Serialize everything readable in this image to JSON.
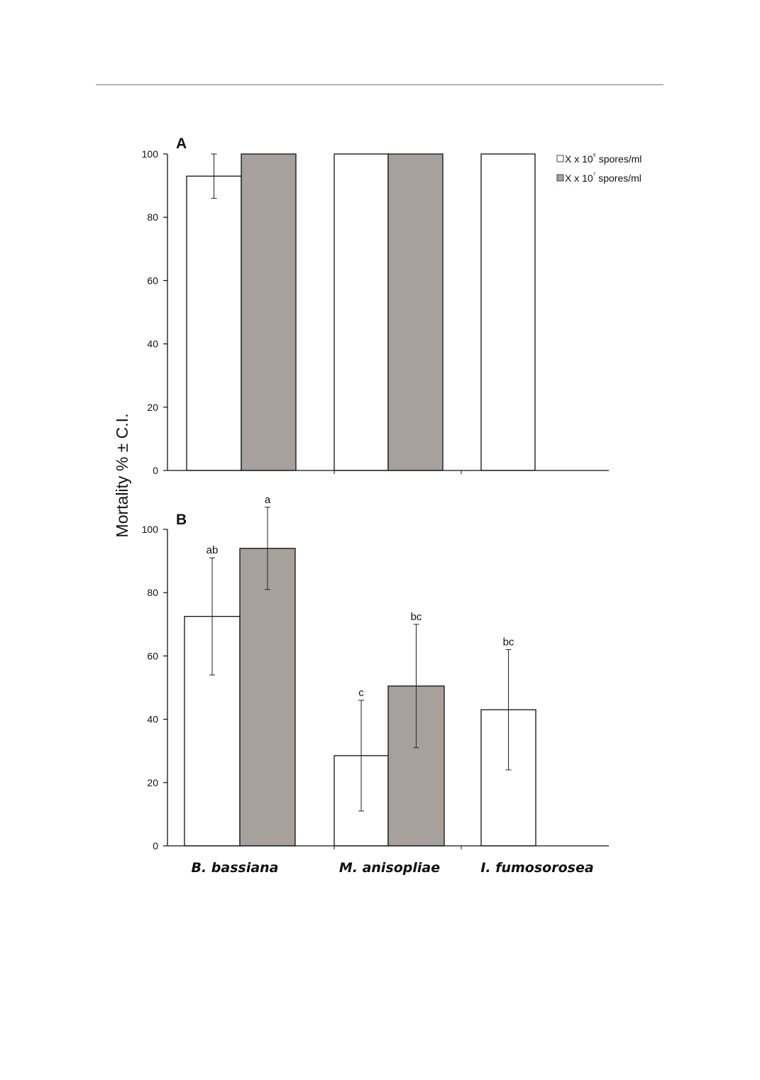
{
  "chart_data": [
    {
      "type": "bar",
      "panel": "A",
      "categories": [
        "B. bassiana",
        "M. anisopliae",
        "I. fumosorosea"
      ],
      "ylabel": "Mortality % ± C.I.",
      "ylim": [
        0,
        100
      ],
      "yticks": [
        "0",
        "20",
        "40",
        "60",
        "80",
        "100"
      ],
      "series": [
        {
          "name": "X x 10⁶ spores/ml",
          "color": "#ffffff",
          "values": [
            93,
            100,
            100
          ],
          "ci": [
            7,
            0,
            0
          ]
        },
        {
          "name": "X x 10⁷ spores/ml",
          "color": "#a6a19d",
          "values": [
            100,
            100,
            null
          ],
          "ci": [
            0,
            0,
            null
          ]
        }
      ],
      "legend": {
        "position": "top-right"
      },
      "grid": false
    },
    {
      "type": "bar",
      "panel": "B",
      "categories": [
        "B. bassiana",
        "M. anisopliae",
        "I. fumosorosea"
      ],
      "ylabel": "Mortality % ± C.I.",
      "ylim": [
        0,
        100
      ],
      "yticks": [
        "0",
        "20",
        "40",
        "60",
        "80",
        "100"
      ],
      "series": [
        {
          "name": "X x 10⁶ spores/ml",
          "color": "#ffffff",
          "values": [
            72.5,
            28.5,
            43
          ],
          "ci": [
            18.5,
            17.5,
            19
          ],
          "labels": [
            "ab",
            "c",
            "bc"
          ]
        },
        {
          "name": "X x 10⁷ spores/ml",
          "color": "#a6a19d",
          "values": [
            94,
            50.5,
            null
          ],
          "ci": [
            13,
            19.5,
            null
          ],
          "labels": [
            "a",
            "bc",
            null
          ]
        }
      ],
      "grid": false
    }
  ]
}
